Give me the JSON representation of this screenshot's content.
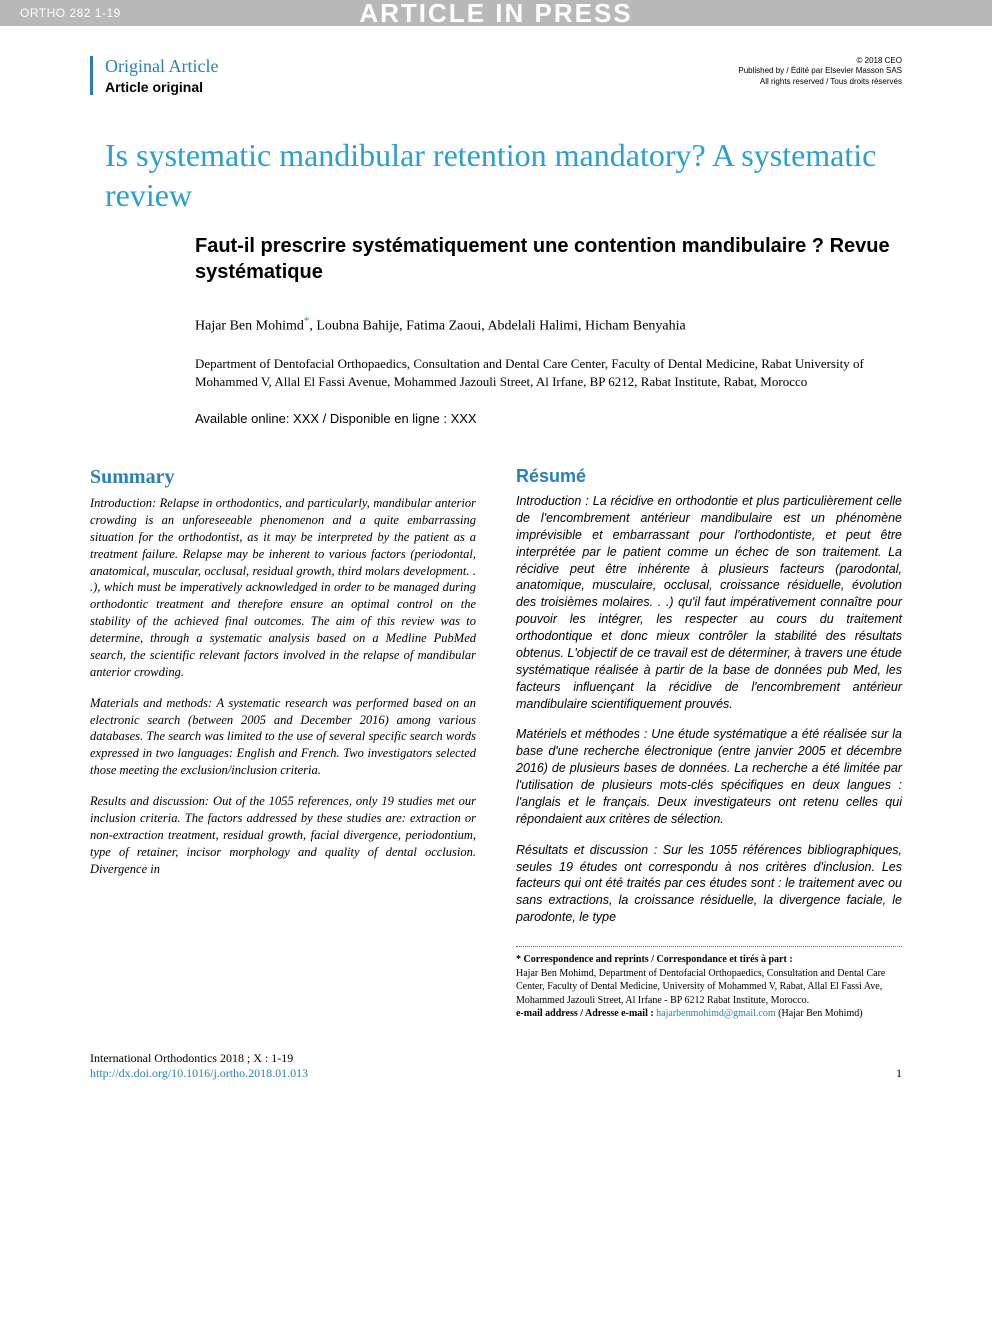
{
  "header": {
    "left": "ORTHO 282 1-19",
    "center": "ARTICLE IN PRESS"
  },
  "copyright": {
    "line1": "© 2018 CEO",
    "line2": "Published by / Édité par Elsevier Masson SAS",
    "line3": "All rights reserved / Tous droits réservés"
  },
  "article_type": {
    "en": "Original Article",
    "fr": "Article original"
  },
  "title": {
    "en": "Is systematic mandibular retention mandatory? A systematic review",
    "fr": "Faut-il prescrire systématiquement une contention mandibulaire ? Revue systématique"
  },
  "authors": {
    "list": "Hajar Ben Mohimd",
    "star": "*",
    "rest": ", Loubna Bahije, Fatima Zaoui, Abdelali Halimi, Hicham Benyahia"
  },
  "affiliation": "Department of Dentofacial Orthopaedics, Consultation and Dental Care Center, Faculty of Dental Medicine, Rabat University of Mohammed V, Allal El Fassi Avenue, Mohammed Jazouli Street, Al Irfane, BP 6212, Rabat Institute, Rabat, Morocco",
  "availability": "Available online: XXX / Disponible en ligne : XXX",
  "summary": {
    "heading": "Summary",
    "p1": "Introduction: Relapse in orthodontics, and particularly, mandibular anterior crowding is an unforeseeable phenomenon and a quite embarrassing situation for the orthodontist, as it may be interpreted by the patient as a treatment failure. Relapse may be inherent to various factors (periodontal, anatomical, muscular, occlusal, residual growth, third molars development. . .), which must be imperatively acknowledged in order to be managed during orthodontic treatment and therefore ensure an optimal control on the stability of the achieved final outcomes. The aim of this review was to determine, through a systematic analysis based on a Medline PubMed search, the scientific relevant factors involved in the relapse of mandibular anterior crowding.",
    "p2": "Materials and methods: A systematic research was performed based on an electronic search (between 2005 and December 2016) among various databases. The search was limited to the use of several specific search words expressed in two languages: English and French. Two investigators selected those meeting the exclusion/inclusion criteria.",
    "p3": "Results and discussion: Out of the 1055 references, only 19 studies met our inclusion criteria. The factors addressed by these studies are: extraction or non-extraction treatment, residual growth, facial divergence, periodontium, type of retainer, incisor morphology and quality of dental occlusion. Divergence in"
  },
  "resume": {
    "heading": "Résumé",
    "p1": "Introduction : La récidive en orthodontie et plus particulièrement celle de l'encombrement antérieur mandibulaire est un phénomène imprévisible et embarrassant pour l'orthodontiste, et peut être interprétée par le patient comme un échec de son traitement. La récidive peut être inhérente à plusieurs facteurs (parodontal, anatomique, musculaire, occlusal, croissance résiduelle, évolution des troisièmes molaires. . .) qu'il faut impérativement connaître pour pouvoir les intégrer, les respecter au cours du traitement orthodontique et donc mieux contrôler la stabilité des résultats obtenus. L'objectif de ce travail est de déterminer, à travers une étude systématique réalisée à partir de la base de données pub Med, les facteurs influençant la récidive de l'encombrement antérieur mandibulaire scientifiquement prouvés.",
    "p2": "Matériels et méthodes : Une étude systématique a été réalisée sur la base d'une recherche électronique (entre janvier 2005 et décembre 2016) de plusieurs bases de données. La recherche a été limitée par l'utilisation de plusieurs mots-clés spécifiques en deux langues : l'anglais et le français. Deux investigateurs ont retenu celles qui répondaient aux critères de sélection.",
    "p3": "Résultats et discussion : Sur les 1055 références bibliographiques, seules 19 études ont correspondu à nos critères d'inclusion. Les facteurs qui ont été traités par ces études sont : le traitement avec ou sans extractions, la croissance résiduelle, la divergence faciale, le parodonte, le type"
  },
  "footnote": {
    "corr_label": "* Correspondence and reprints / Correspondance et tirés à part :",
    "corr_text": "Hajar Ben Mohimd, Department of Dentofacial Orthopaedics, Consultation and Dental Care Center, Faculty of Dental Medicine, University of Mohammed V, Rabat, Allal El Fassi Ave, Mohammed Jazouli Street, Al Irfane - BP 6212 Rabat Institute, Morocco.",
    "email_label": "e-mail address / Adresse e-mail :",
    "email": "hajarbenmohimd@gmail.com",
    "email_suffix": " (Hajar Ben Mohimd)"
  },
  "footer": {
    "journal": "International Orthodontics 2018 ; X : 1-19",
    "doi": "http://dx.doi.org/10.1016/j.ortho.2018.01.013",
    "page": "1"
  },
  "colors": {
    "primary_blue": "#2a7fb8",
    "title_blue": "#2a9fd0",
    "header_gray": "#b8b8b8",
    "text": "#000000",
    "background": "#ffffff"
  },
  "typography": {
    "serif_family": "Georgia",
    "sans_family": "Arial",
    "title_en_size": 32,
    "title_fr_size": 20,
    "body_size": 12.5,
    "heading_size": 20
  }
}
